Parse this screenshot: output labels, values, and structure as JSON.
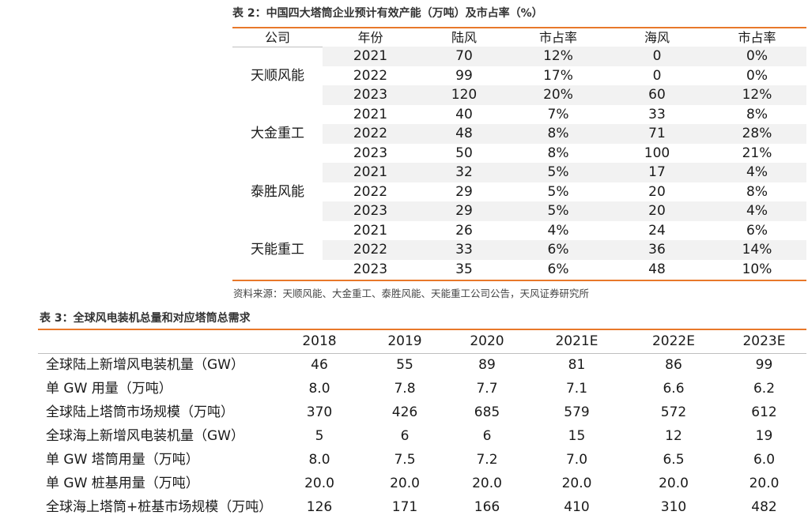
{
  "table2": {
    "title": "表 2：中国四大塔筒企业预计有效产能（万吨）及市占率（%）",
    "headers": [
      "公司",
      "年份",
      "陆风",
      "市占率",
      "海风",
      "市占率"
    ],
    "groups": [
      {
        "company": "天顺风能",
        "rows": [
          [
            "2021",
            "70",
            "12%",
            "0",
            "0%"
          ],
          [
            "2022",
            "99",
            "17%",
            "0",
            "0%"
          ],
          [
            "2023",
            "120",
            "20%",
            "60",
            "12%"
          ]
        ]
      },
      {
        "company": "大金重工",
        "rows": [
          [
            "2021",
            "40",
            "7%",
            "33",
            "8%"
          ],
          [
            "2022",
            "48",
            "8%",
            "71",
            "28%"
          ],
          [
            "2023",
            "50",
            "8%",
            "100",
            "21%"
          ]
        ]
      },
      {
        "company": "泰胜风能",
        "rows": [
          [
            "2021",
            "32",
            "5%",
            "17",
            "4%"
          ],
          [
            "2022",
            "29",
            "5%",
            "20",
            "8%"
          ],
          [
            "2023",
            "29",
            "5%",
            "20",
            "4%"
          ]
        ]
      },
      {
        "company": "天能重工",
        "rows": [
          [
            "2021",
            "26",
            "4%",
            "24",
            "6%"
          ],
          [
            "2022",
            "33",
            "6%",
            "36",
            "14%"
          ],
          [
            "2023",
            "35",
            "6%",
            "48",
            "10%"
          ]
        ]
      }
    ],
    "source": "资料来源：天顺风能、大金重工、泰胜风能、天能重工公司公告，天风证券研究所"
  },
  "table3": {
    "title": "表 3：全球风电装机总量和对应塔筒总需求",
    "headers": [
      "",
      "2018",
      "2019",
      "2020",
      "2021E",
      "2022E",
      "2023E"
    ],
    "rows": [
      [
        "全球陆上新增风电装机量（GW）",
        "46",
        "55",
        "89",
        "81",
        "86",
        "99"
      ],
      [
        "单 GW 用量（万吨）",
        "8.0",
        "7.8",
        "7.7",
        "7.1",
        "6.6",
        "6.2"
      ],
      [
        "全球陆上塔筒市场规模（万吨）",
        "370",
        "426",
        "685",
        "579",
        "572",
        "612"
      ],
      [
        "全球海上新增风电装机量（GW）",
        "5",
        "6",
        "6",
        "15",
        "12",
        "19"
      ],
      [
        "单 GW 塔筒用量（万吨）",
        "8.0",
        "7.5",
        "7.2",
        "7.0",
        "6.5",
        "6.0"
      ],
      [
        "单 GW 桩基用量（万吨）",
        "20.0",
        "20.0",
        "20.0",
        "20.0",
        "20.0",
        "20.0"
      ],
      [
        "全球海上塔筒+桩基市场规模（万吨）",
        "126",
        "171",
        "166",
        "410",
        "310",
        "482"
      ]
    ]
  }
}
